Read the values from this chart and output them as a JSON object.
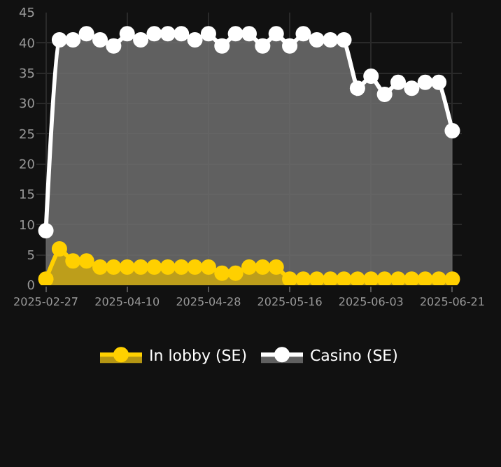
{
  "chart_data": {
    "type": "area",
    "categories": [
      "2025-02-27",
      null,
      null,
      null,
      null,
      null,
      "2025-04-10",
      null,
      null,
      null,
      null,
      null,
      "2025-04-28",
      null,
      null,
      null,
      null,
      null,
      "2025-05-16",
      null,
      null,
      null,
      null,
      null,
      "2025-06-03",
      null,
      null,
      null,
      null,
      null,
      "2025-06-21"
    ],
    "series": [
      {
        "name": "In lobby (SE)",
        "color": "#ffd000",
        "values": [
          1,
          6,
          4,
          4,
          3,
          3,
          3,
          3,
          3,
          3,
          3,
          3,
          3,
          2,
          2,
          3,
          3,
          3,
          1,
          1,
          1,
          1,
          1,
          1,
          1,
          1,
          1,
          1,
          1,
          1,
          1
        ]
      },
      {
        "name": "Casino (SE)",
        "color": "#ffffff",
        "values": [
          9,
          40.5,
          40.5,
          41.5,
          40.5,
          39.5,
          41.5,
          40.5,
          41.5,
          41.5,
          41.5,
          40.5,
          41.5,
          39.5,
          41.5,
          41.5,
          39.5,
          41.5,
          39.5,
          41.5,
          40.5,
          40.5,
          40.5,
          32.5,
          34.5,
          31.5,
          33.5,
          32.5,
          33.5,
          33.5,
          25.5
        ]
      }
    ],
    "ylim": [
      0,
      45
    ],
    "yticks": [
      0,
      5,
      10,
      15,
      20,
      25,
      30,
      35,
      40,
      45
    ],
    "grid": true,
    "legend": "bottom",
    "marker": "circle"
  }
}
